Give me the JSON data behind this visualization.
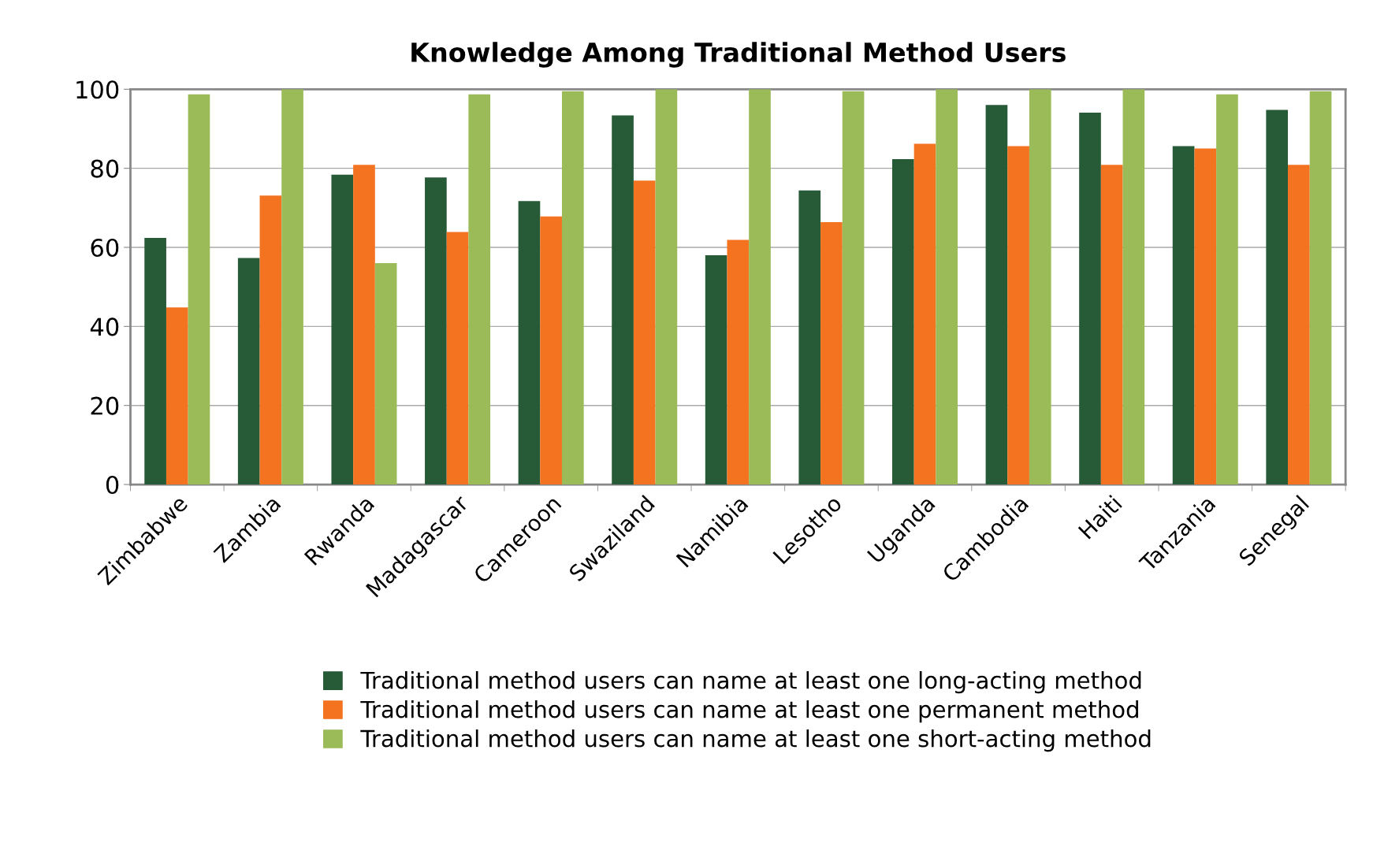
{
  "chart_data": {
    "type": "bar",
    "title": "Knowledge Among Traditional Method Users",
    "categories": [
      "Zimbabwe",
      "Zambia",
      "Rwanda",
      "Madagascar",
      "Cameroon",
      "Swaziland",
      "Namibia",
      "Lesotho",
      "Uganda",
      "Cambodia",
      "Haiti",
      "Tanzania",
      "Senegal"
    ],
    "series": [
      {
        "name": "Traditional method users can name at least one long-acting method",
        "color": "#275a36",
        "values": [
          62.4,
          57.3,
          78.4,
          77.7,
          71.7,
          93.4,
          58.0,
          74.4,
          82.3,
          96.0,
          94.1,
          85.6,
          94.8
        ]
      },
      {
        "name": "Traditional method users can name at least one permanent method",
        "color": "#f37321",
        "values": [
          44.8,
          73.1,
          80.9,
          63.9,
          67.8,
          76.9,
          61.9,
          66.4,
          86.2,
          85.6,
          80.9,
          85.0,
          80.9
        ]
      },
      {
        "name": "Traditional method users can name at least one short-acting method",
        "color": "#9bbb59",
        "values": [
          98.7,
          100,
          56.0,
          98.7,
          99.5,
          100,
          100,
          99.5,
          100,
          100,
          100,
          98.7,
          99.5
        ]
      }
    ],
    "ylim": [
      0,
      100
    ],
    "yticks": [
      0,
      20,
      40,
      60,
      80,
      100
    ],
    "grid": "y",
    "legend": "bottom"
  }
}
